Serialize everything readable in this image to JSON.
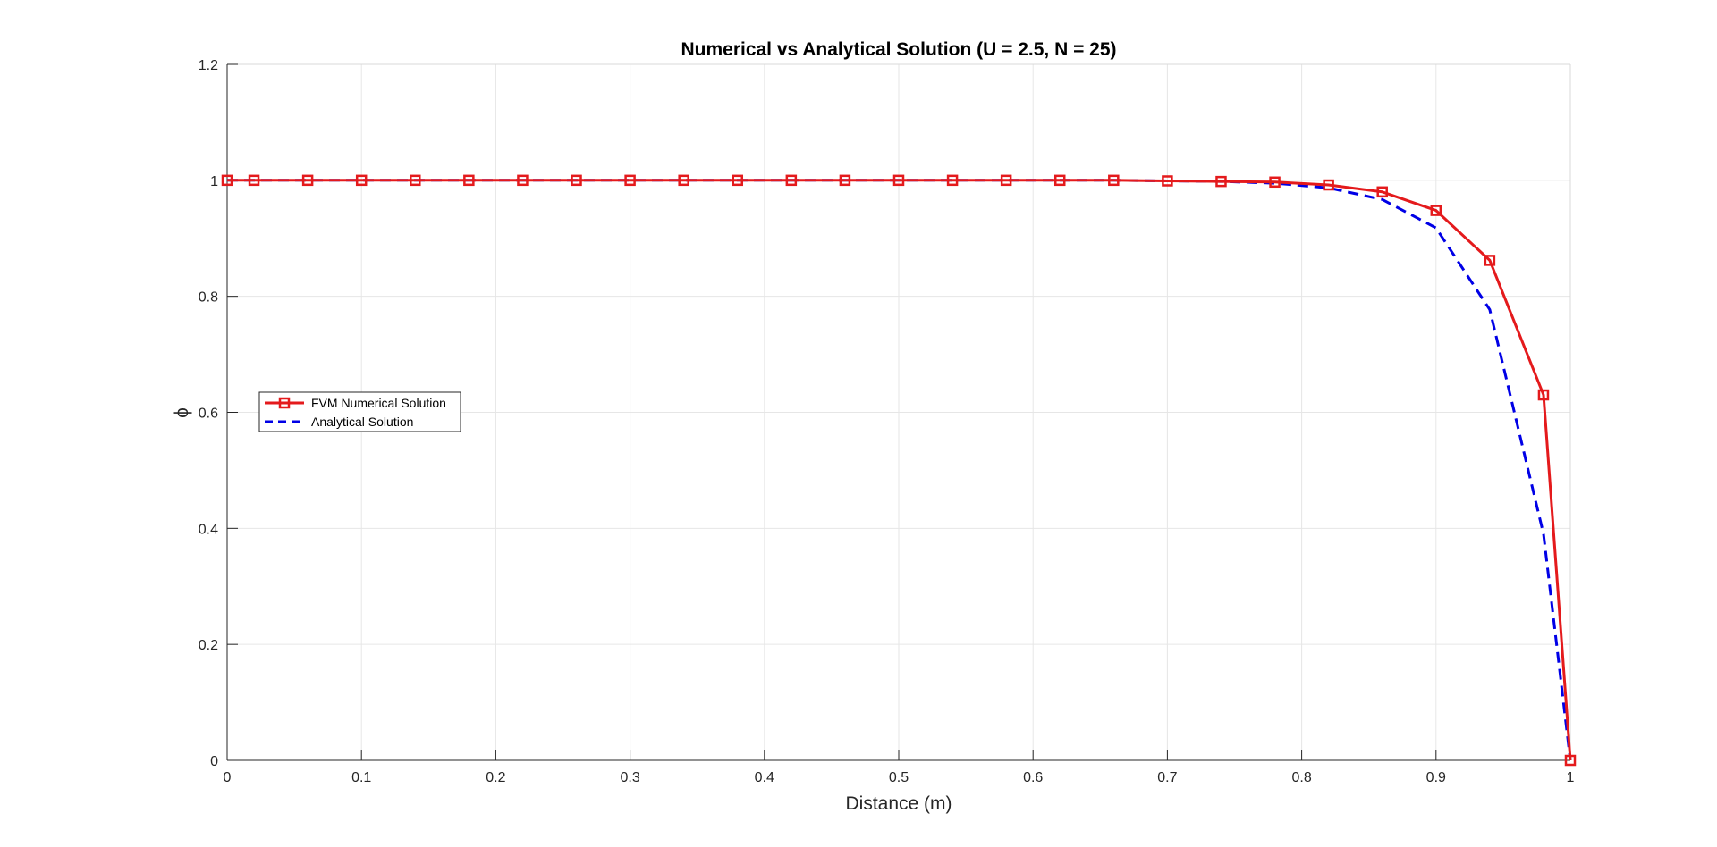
{
  "chart_data": {
    "type": "line",
    "title": "Numerical vs Analytical Solution (U = 2.5, N = 25)",
    "xlabel": "Distance (m)",
    "ylabel": "ϕ",
    "xlim": [
      0,
      1
    ],
    "ylim": [
      0,
      1.2
    ],
    "xticks": [
      0,
      0.1,
      0.2,
      0.3,
      0.4,
      0.5,
      0.6,
      0.7,
      0.8,
      0.9,
      1
    ],
    "xtick_labels": [
      "0",
      "0.1",
      "0.2",
      "0.3",
      "0.4",
      "0.5",
      "0.6",
      "0.7",
      "0.8",
      "0.9",
      "1"
    ],
    "yticks": [
      0,
      0.2,
      0.4,
      0.6,
      0.8,
      1,
      1.2
    ],
    "ytick_labels": [
      "0",
      "0.2",
      "0.4",
      "0.6",
      "0.8",
      "1",
      "1.2"
    ],
    "grid": true,
    "legend_position": "left",
    "series": [
      {
        "name": "FVM Numerical Solution",
        "color": "#e41a1c",
        "line_style": "solid",
        "marker": "square",
        "x": [
          0,
          0.02,
          0.06,
          0.1,
          0.14,
          0.18,
          0.22,
          0.26,
          0.3,
          0.34,
          0.38,
          0.42,
          0.46,
          0.5,
          0.54,
          0.58,
          0.62,
          0.66,
          0.7,
          0.74,
          0.78,
          0.82,
          0.86,
          0.9,
          0.94,
          0.98,
          1
        ],
        "y": [
          1,
          1,
          1,
          1,
          1,
          1,
          1,
          1,
          1,
          1,
          1,
          1,
          1,
          1,
          1,
          1,
          1,
          1,
          0.999,
          0.998,
          0.997,
          0.992,
          0.98,
          0.948,
          0.862,
          0.63,
          0
        ]
      },
      {
        "name": "Analytical Solution",
        "color": "#0000e6",
        "line_style": "dashed",
        "marker": "none",
        "x": [
          0,
          0.02,
          0.06,
          0.1,
          0.14,
          0.18,
          0.22,
          0.26,
          0.3,
          0.34,
          0.38,
          0.42,
          0.46,
          0.5,
          0.54,
          0.58,
          0.62,
          0.66,
          0.7,
          0.74,
          0.78,
          0.82,
          0.86,
          0.9,
          0.94,
          0.98,
          1
        ],
        "y": [
          1,
          1,
          1,
          1,
          1,
          1,
          1,
          1,
          1,
          1,
          1,
          1,
          1,
          1,
          1,
          1,
          1,
          1,
          0.999,
          0.998,
          0.995,
          0.987,
          0.967,
          0.918,
          0.777,
          0.39,
          0
        ]
      }
    ]
  }
}
